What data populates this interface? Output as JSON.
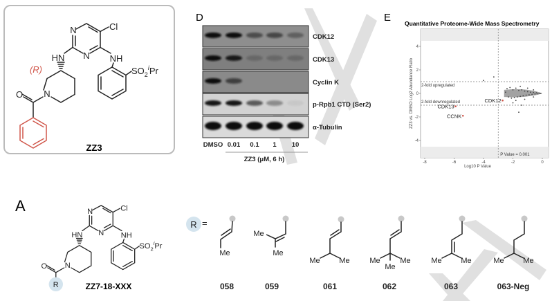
{
  "panel_zz3": {
    "compound_label": "ZZ3",
    "stereo_label": "(R)",
    "atoms": {
      "N1": "N",
      "N3": "N",
      "Cl": "Cl",
      "HN": "HN",
      "NH": "NH",
      "N_pip": "N",
      "O": "O",
      "S_main": "SO",
      "S_sub": "2",
      "S_sup": "i",
      "S_end": "Pr"
    },
    "highlight_color": "#d0564a"
  },
  "panel_d": {
    "label": "D",
    "rows": [
      {
        "label": "CDK12",
        "band_intensity": [
          1.0,
          1.0,
          0.5,
          0.55,
          0.35
        ]
      },
      {
        "label": "CDK13",
        "band_intensity": [
          1.0,
          0.9,
          0.2,
          0.2,
          0.2
        ]
      },
      {
        "label": "Cyclin K",
        "band_intensity": [
          1.0,
          0.6,
          0.0,
          0.0,
          0.0
        ]
      },
      {
        "label": "p-Rpb1 CTD (Ser2)",
        "band_intensity": [
          0.95,
          0.95,
          0.6,
          0.35,
          0.05
        ]
      },
      {
        "label": "α-Tubulin",
        "band_intensity": [
          1.0,
          1.0,
          1.0,
          1.0,
          1.0
        ]
      }
    ],
    "lanes": [
      "DMSO",
      "0.01",
      "0.1",
      "1",
      "10"
    ],
    "treatment": "ZZ3 (μM, 6 h)"
  },
  "panel_e": {
    "label": "E",
    "chart_data": {
      "type": "scatter",
      "title": "Quantitative Proteome-Wide Mass Spectrometry",
      "xlabel": "Log10 P Value",
      "ylabel": "ZZ3 vs. DMSO Log2 Abundance Ratio",
      "xlim": [
        -8.3,
        0.5
      ],
      "ylim": [
        -5.5,
        5.5
      ],
      "xticks": [
        "-8",
        "-6",
        "-4",
        "-2",
        "0"
      ],
      "yticks": [
        "4",
        "2",
        "0",
        "-2",
        "-4"
      ],
      "thresholds": {
        "x": -3,
        "y_up": 1,
        "y_down": -1
      },
      "annotations": {
        "up": "2-fold upregulated",
        "down": "2-fold downregulated",
        "pvalue": "P Value = 0.001"
      },
      "highlighted": [
        {
          "name": "CDK12",
          "x": -2.7,
          "y": -0.6
        },
        {
          "name": "CDK13",
          "x": -5.9,
          "y": -1.1
        },
        {
          "name": "CCNK",
          "x": -5.4,
          "y": -1.9
        }
      ],
      "points": [
        [
          -2.4,
          0.4
        ],
        [
          -2.2,
          0.5
        ],
        [
          -2.0,
          0.3
        ],
        [
          -1.8,
          0.45
        ],
        [
          -1.6,
          0.25
        ],
        [
          -1.4,
          0.3
        ],
        [
          -1.2,
          0.2
        ],
        [
          -1.0,
          0.15
        ],
        [
          -0.8,
          0.1
        ],
        [
          -0.6,
          0.08
        ],
        [
          -0.4,
          0.05
        ],
        [
          -0.2,
          0.02
        ],
        [
          -0.1,
          0.0
        ],
        [
          -2.3,
          -0.3
        ],
        [
          -2.1,
          -0.4
        ],
        [
          -1.9,
          -0.35
        ],
        [
          -1.7,
          -0.3
        ],
        [
          -1.5,
          -0.25
        ],
        [
          -1.3,
          -0.2
        ],
        [
          -1.1,
          -0.15
        ],
        [
          -0.9,
          -0.12
        ],
        [
          -0.7,
          -0.08
        ],
        [
          -0.5,
          -0.05
        ],
        [
          -0.3,
          -0.03
        ],
        [
          -1.5,
          0.6
        ],
        [
          -1.0,
          0.45
        ],
        [
          -1.8,
          -0.6
        ],
        [
          -1.2,
          -0.5
        ],
        [
          -0.6,
          0.3
        ],
        [
          -0.6,
          -0.3
        ],
        [
          -2.0,
          -0.8
        ],
        [
          -1.6,
          -1.6
        ],
        [
          -4.0,
          1.1
        ],
        [
          -3.3,
          1.4
        ],
        [
          -1.4,
          -1.0
        ],
        [
          -2.5,
          0.1
        ]
      ],
      "grid": false
    },
    "highlight_color": "#d0564a"
  },
  "panel_a": {
    "label": "A",
    "compound_label": "ZZ7-18-XXX",
    "r_label": "R",
    "equals": "=",
    "me": "Me",
    "substituents": [
      "058",
      "059",
      "061",
      "062",
      "063",
      "063-Neg"
    ],
    "r_circle_color": "#d4e4ee"
  }
}
